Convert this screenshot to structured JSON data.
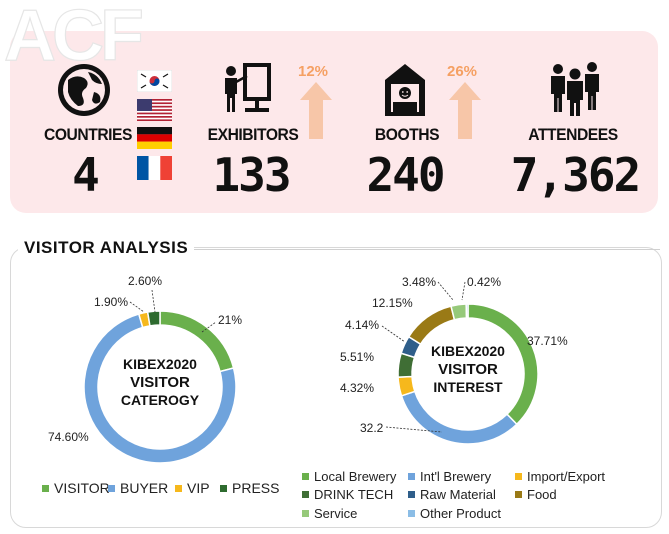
{
  "logo": {
    "text": "ACF"
  },
  "stats": {
    "countries": {
      "label": "COUNTRIES",
      "value": "4"
    },
    "exhibitors": {
      "label": "EXHIBITORS",
      "value": "133",
      "growth": "12%"
    },
    "booths": {
      "label": "BOOTHS",
      "value": "240",
      "growth": "26%"
    },
    "attendees": {
      "label": "ATTENDEES",
      "value": "7,362"
    },
    "flags": [
      "korea-flag",
      "usa-flag",
      "germany-flag",
      "france-flag"
    ]
  },
  "analysis": {
    "title": "VISITOR ANALYSIS"
  },
  "colors": {
    "panel": "#fde8ea",
    "arrow": "#f7c6a8",
    "growth_text": "#f5a063",
    "visitor": "#6ab04c",
    "buyer": "#6fa3dc",
    "vip": "#f6b81c",
    "press": "#2e6b2f",
    "local_brewery": "#6ab04c",
    "intl_brewery": "#6fa3dc",
    "import_export": "#f6b81c",
    "drink_tech": "#3f6e35",
    "raw_material": "#2f5e8a",
    "food": "#9a7a16",
    "service": "#96c97a",
    "other_product": "#8bbde6"
  },
  "chart_data": [
    {
      "type": "pie",
      "center_label": [
        "KIBEX2020",
        "VISITOR",
        "CATEROGY"
      ],
      "categories": [
        "VISITOR",
        "BUYER",
        "VIP",
        "PRESS"
      ],
      "values": [
        21,
        74.6,
        1.9,
        2.6
      ],
      "data_labels": [
        "21%",
        "74.60%",
        "1.90%",
        "2.60%"
      ],
      "legend": "bottom"
    },
    {
      "type": "pie",
      "center_label": [
        "KIBEX2020",
        "VISITOR",
        "INTEREST"
      ],
      "categories": [
        "Local Brewery",
        "Int'l Brewery",
        "Import/Export",
        "DRINK TECH",
        "Raw Material",
        "Food",
        "Service",
        "Other Product"
      ],
      "values": [
        37.71,
        32.2,
        4.32,
        5.51,
        4.14,
        12.15,
        3.48,
        0.42
      ],
      "data_labels": [
        "37.71%",
        "32.2",
        "4.32%",
        "5.51%",
        "4.14%",
        "12.15%",
        "3.48%",
        "0.42%"
      ],
      "legend": "bottom"
    }
  ]
}
